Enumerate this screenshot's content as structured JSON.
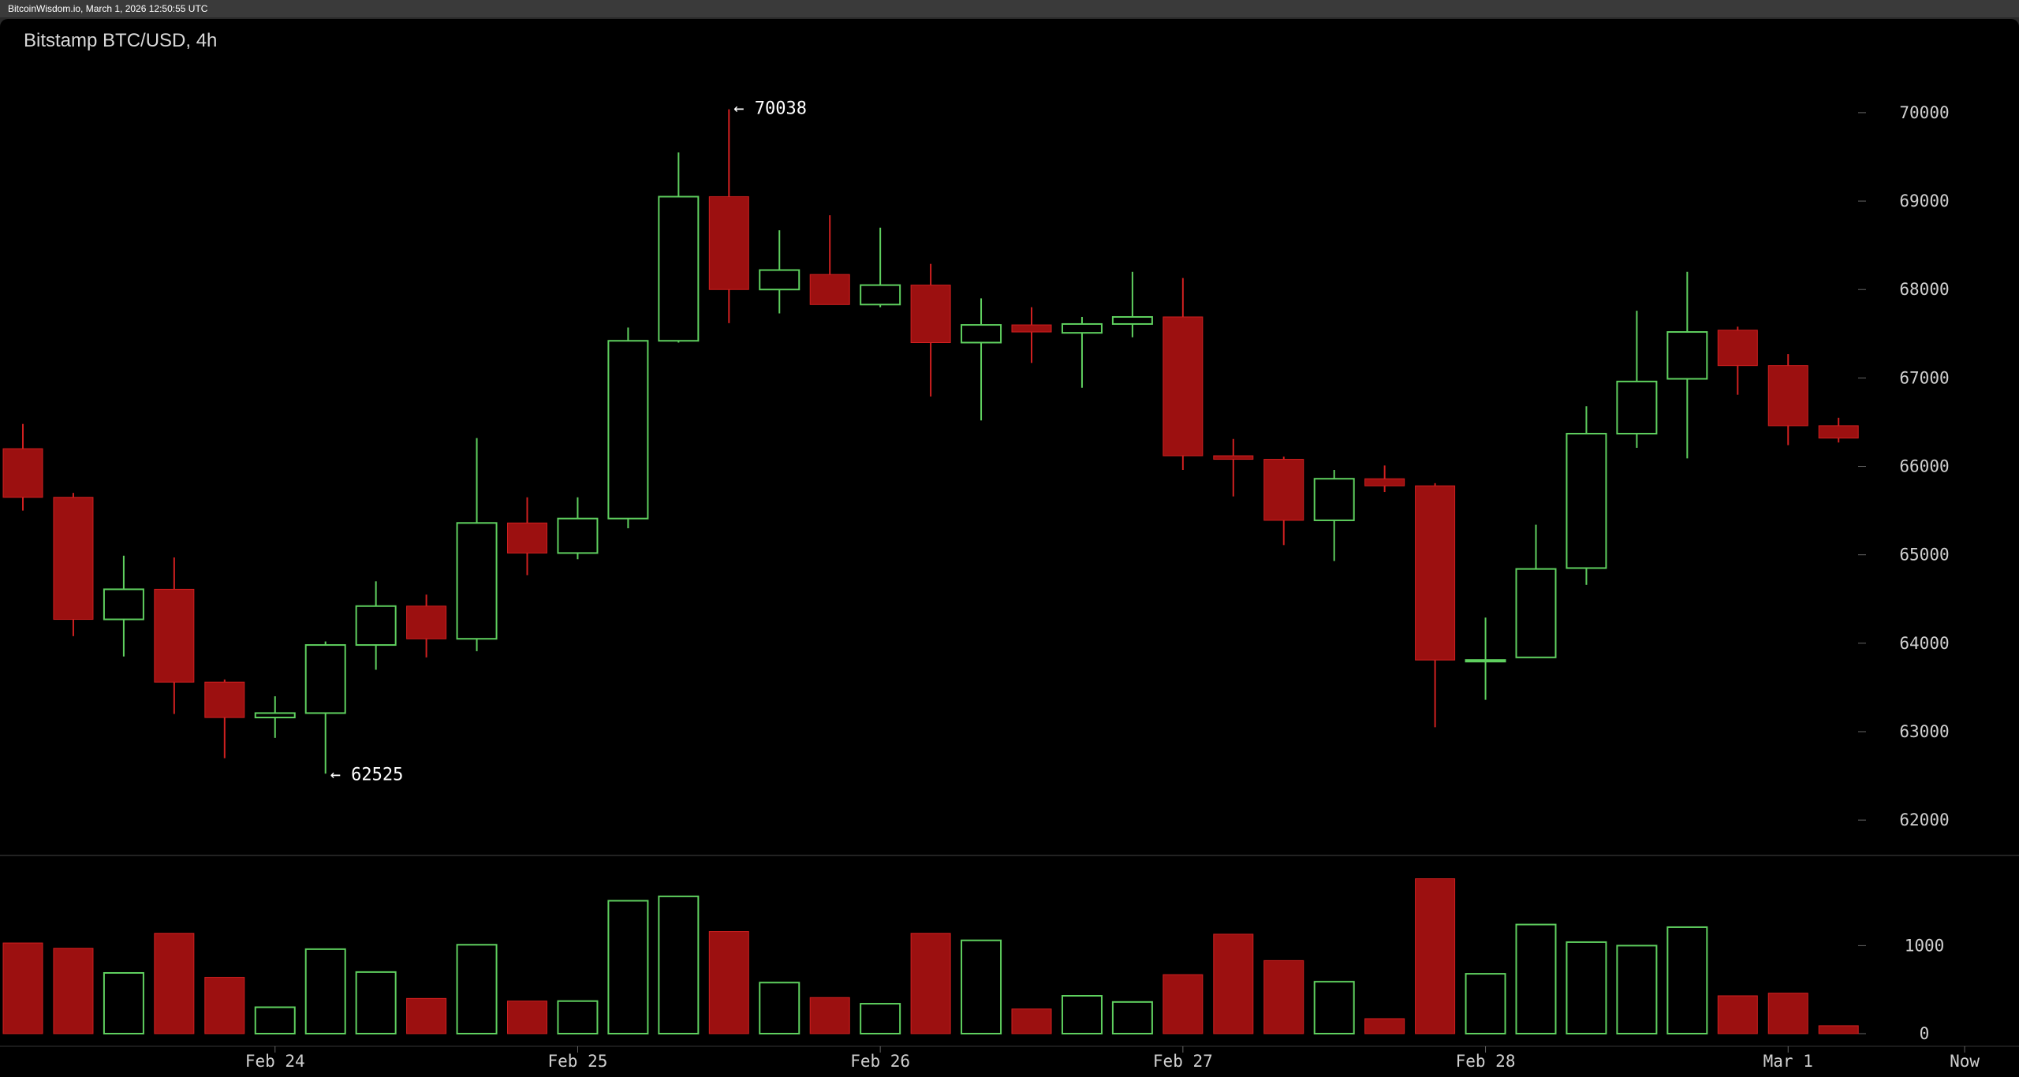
{
  "window": {
    "caption": "BitcoinWisdom.io, March 1, 2026 12:50:55 UTC"
  },
  "chart_data": {
    "type": "candlestick",
    "title": "Bitstamp BTC/USD, 4h",
    "exchange": "Bitstamp",
    "pair": "BTC/USD",
    "interval": "4h",
    "price_axis": {
      "ylim": [
        61600,
        70650
      ],
      "ticks": [
        62000,
        63000,
        64000,
        65000,
        66000,
        67000,
        68000,
        69000,
        70000
      ],
      "tick_labels": [
        "62000",
        "63000",
        "64000",
        "65000",
        "66000",
        "67000",
        "68000",
        "69000",
        "70000"
      ]
    },
    "volume_axis": {
      "ylim": [
        0,
        1980
      ],
      "ticks": [
        0,
        1000
      ],
      "tick_labels": [
        "0",
        "1000"
      ]
    },
    "x_axis": {
      "labels": [
        "Feb 24",
        "Feb 25",
        "Feb 26",
        "Feb 27",
        "Feb 28",
        "Mar 1",
        "Now"
      ],
      "label_candle_index": [
        5,
        11,
        17,
        23,
        29,
        35,
        38.5
      ]
    },
    "annotations": {
      "high": {
        "label": "← 70038",
        "value": 70038,
        "candle_index": 14
      },
      "low": {
        "label": "← 62525",
        "value": 62525,
        "candle_index": 6
      }
    },
    "colors": {
      "up": "#5fd05f",
      "down_fill": "#9c1010",
      "down_wick": "#d02020",
      "axis_text": "#d0d0d0",
      "divider": "#444444"
    },
    "candles": [
      {
        "o": 66200,
        "h": 66480,
        "l": 65500,
        "c": 65650,
        "v": 1030
      },
      {
        "o": 65650,
        "h": 65700,
        "l": 64080,
        "c": 64270,
        "v": 970
      },
      {
        "o": 64270,
        "h": 64990,
        "l": 63850,
        "c": 64610,
        "v": 690
      },
      {
        "o": 64610,
        "h": 64970,
        "l": 63200,
        "c": 63560,
        "v": 1140
      },
      {
        "o": 63560,
        "h": 63590,
        "l": 62700,
        "c": 63160,
        "v": 640
      },
      {
        "o": 63160,
        "h": 63400,
        "l": 62930,
        "c": 63210,
        "v": 300
      },
      {
        "o": 63210,
        "h": 64020,
        "l": 62525,
        "c": 63980,
        "v": 960
      },
      {
        "o": 63980,
        "h": 64700,
        "l": 63700,
        "c": 64420,
        "v": 700
      },
      {
        "o": 64420,
        "h": 64550,
        "l": 63840,
        "c": 64050,
        "v": 400
      },
      {
        "o": 64050,
        "h": 66320,
        "l": 63910,
        "c": 65360,
        "v": 1010
      },
      {
        "o": 65360,
        "h": 65650,
        "l": 64770,
        "c": 65020,
        "v": 370
      },
      {
        "o": 65020,
        "h": 65650,
        "l": 64950,
        "c": 65410,
        "v": 370
      },
      {
        "o": 65410,
        "h": 67570,
        "l": 65300,
        "c": 67420,
        "v": 1510
      },
      {
        "o": 67420,
        "h": 69550,
        "l": 67400,
        "c": 69050,
        "v": 1560
      },
      {
        "o": 69050,
        "h": 70038,
        "l": 67620,
        "c": 68000,
        "v": 1160
      },
      {
        "o": 68000,
        "h": 68670,
        "l": 67730,
        "c": 68220,
        "v": 580
      },
      {
        "o": 68170,
        "h": 68840,
        "l": 67830,
        "c": 67830,
        "v": 410
      },
      {
        "o": 67830,
        "h": 68700,
        "l": 67800,
        "c": 68050,
        "v": 340
      },
      {
        "o": 68050,
        "h": 68290,
        "l": 66790,
        "c": 67400,
        "v": 1140
      },
      {
        "o": 67400,
        "h": 67900,
        "l": 66520,
        "c": 67600,
        "v": 1060
      },
      {
        "o": 67600,
        "h": 67800,
        "l": 67170,
        "c": 67520,
        "v": 280
      },
      {
        "o": 67510,
        "h": 67690,
        "l": 66890,
        "c": 67610,
        "v": 430
      },
      {
        "o": 67610,
        "h": 68200,
        "l": 67460,
        "c": 67690,
        "v": 360
      },
      {
        "o": 67690,
        "h": 68130,
        "l": 65960,
        "c": 66120,
        "v": 670
      },
      {
        "o": 66120,
        "h": 66310,
        "l": 65660,
        "c": 66080,
        "v": 1130
      },
      {
        "o": 66080,
        "h": 66110,
        "l": 65110,
        "c": 65390,
        "v": 830
      },
      {
        "o": 65390,
        "h": 65960,
        "l": 64930,
        "c": 65860,
        "v": 590
      },
      {
        "o": 65860,
        "h": 66010,
        "l": 65710,
        "c": 65780,
        "v": 170
      },
      {
        "o": 65780,
        "h": 65810,
        "l": 63050,
        "c": 63810,
        "v": 1760
      },
      {
        "o": 63810,
        "h": 64290,
        "l": 63360,
        "c": 63810,
        "v": 680
      },
      {
        "o": 63840,
        "h": 65340,
        "l": 63840,
        "c": 64840,
        "v": 1240
      },
      {
        "o": 64850,
        "h": 66680,
        "l": 64660,
        "c": 66370,
        "v": 1040
      },
      {
        "o": 66370,
        "h": 67760,
        "l": 66210,
        "c": 66960,
        "v": 1000
      },
      {
        "o": 66990,
        "h": 68200,
        "l": 66090,
        "c": 67520,
        "v": 1210
      },
      {
        "o": 67540,
        "h": 67580,
        "l": 66810,
        "c": 67140,
        "v": 430
      },
      {
        "o": 67140,
        "h": 67270,
        "l": 66240,
        "c": 66460,
        "v": 460
      },
      {
        "o": 66460,
        "h": 66550,
        "l": 66270,
        "c": 66320,
        "v": 90
      }
    ]
  }
}
